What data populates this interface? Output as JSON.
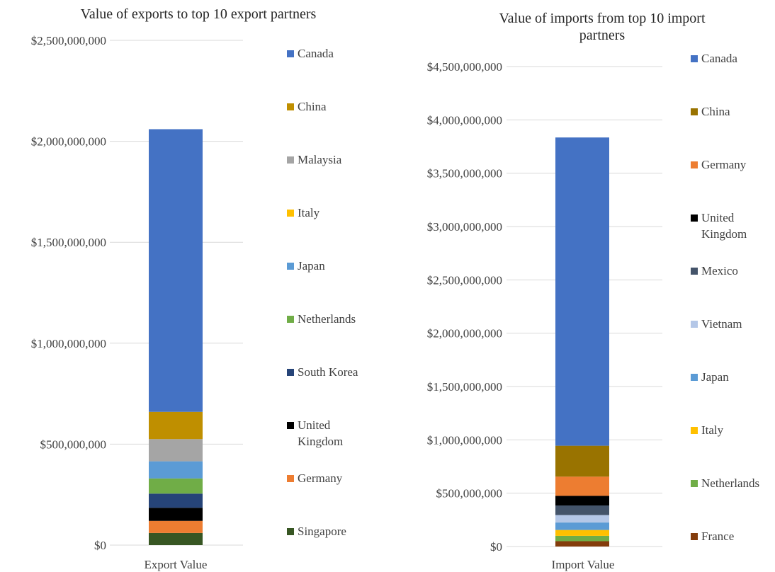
{
  "chart_data": [
    {
      "type": "bar",
      "stacked": true,
      "title": "Value of exports to top 10 export partners",
      "categories": [
        "Export Value"
      ],
      "ylim": [
        0,
        2500000000
      ],
      "yticks": [
        0,
        500000000,
        1000000000,
        1500000000,
        2000000000,
        2500000000
      ],
      "ytick_labels": [
        "$0",
        "$500,000,000",
        "$1,000,000,000",
        "$1,500,000,000",
        "$2,000,000,000",
        "$2,500,000,000"
      ],
      "grid": true,
      "legend_position": "right",
      "series": [
        {
          "name": "Singapore",
          "values": [
            60000000
          ],
          "color": "#375623"
        },
        {
          "name": "Germany",
          "values": [
            60000000
          ],
          "color": "#ED7D31"
        },
        {
          "name": "United Kingdom",
          "values": [
            65000000
          ],
          "color": "#000000"
        },
        {
          "name": "South Korea",
          "values": [
            70000000
          ],
          "color": "#264478"
        },
        {
          "name": "Netherlands",
          "values": [
            75000000
          ],
          "color": "#70AD47"
        },
        {
          "name": "Japan",
          "values": [
            85000000
          ],
          "color": "#5B9BD5"
        },
        {
          "name": "Italy",
          "values": [
            0
          ],
          "color": "#FFC000"
        },
        {
          "name": "Malaysia",
          "values": [
            110000000
          ],
          "color": "#A5A5A5"
        },
        {
          "name": "China",
          "values": [
            135000000
          ],
          "color": "#BF8F00"
        },
        {
          "name": "Canada",
          "values": [
            1400000000
          ],
          "color": "#4472C4"
        }
      ],
      "legend_order": [
        "Canada",
        "China",
        "Malaysia",
        "Italy",
        "Japan",
        "Netherlands",
        "South Korea",
        "United Kingdom",
        "Germany",
        "Singapore"
      ]
    },
    {
      "type": "bar",
      "stacked": true,
      "title": "Value of imports from top 10 import partners",
      "categories": [
        "Import Value"
      ],
      "ylim": [
        0,
        4500000000
      ],
      "yticks": [
        0,
        500000000,
        1000000000,
        1500000000,
        2000000000,
        2500000000,
        3000000000,
        3500000000,
        4000000000,
        4500000000
      ],
      "ytick_labels": [
        "$0",
        "$500,000,000",
        "$1,000,000,000",
        "$1,500,000,000",
        "$2,000,000,000",
        "$2,500,000,000",
        "$3,000,000,000",
        "$3,500,000,000",
        "$4,000,000,000",
        "$4,500,000,000"
      ],
      "grid": true,
      "legend_position": "right",
      "series": [
        {
          "name": "France",
          "values": [
            50000000
          ],
          "color": "#843C0C"
        },
        {
          "name": "Netherlands",
          "values": [
            50000000
          ],
          "color": "#70AD47"
        },
        {
          "name": "Italy",
          "values": [
            55000000
          ],
          "color": "#FFC000"
        },
        {
          "name": "Japan",
          "values": [
            70000000
          ],
          "color": "#5B9BD5"
        },
        {
          "name": "Vietnam",
          "values": [
            70000000
          ],
          "color": "#B4C7E7"
        },
        {
          "name": "Mexico",
          "values": [
            90000000
          ],
          "color": "#44546A"
        },
        {
          "name": "United Kingdom",
          "values": [
            90000000
          ],
          "color": "#000000"
        },
        {
          "name": "Germany",
          "values": [
            180000000
          ],
          "color": "#ED7D31"
        },
        {
          "name": "China",
          "values": [
            290000000
          ],
          "color": "#997300"
        },
        {
          "name": "Canada",
          "values": [
            2890000000
          ],
          "color": "#4472C4"
        }
      ],
      "legend_order": [
        "Canada",
        "China",
        "Germany",
        "United Kingdom",
        "Mexico",
        "Vietnam",
        "Japan",
        "Italy",
        "Netherlands",
        "France"
      ]
    }
  ]
}
